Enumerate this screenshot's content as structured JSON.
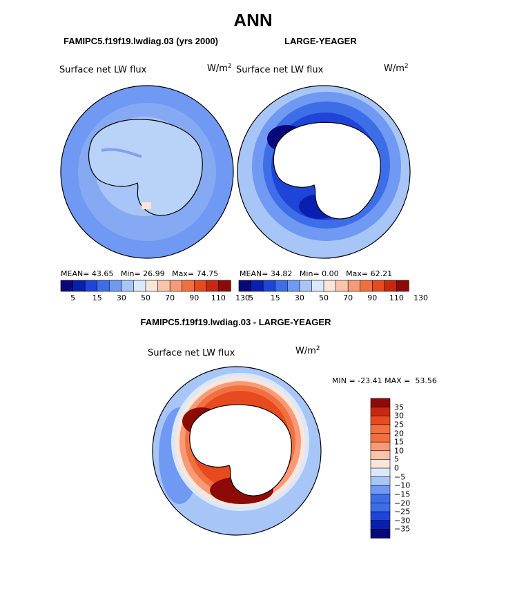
{
  "page": {
    "title": "ANN",
    "diff_title": "FAMIPC5.f19f19.lwdiag.03 - LARGE-YEAGER"
  },
  "colors": {
    "abs_scale": [
      "#08087a",
      "#0a1fb0",
      "#1f44d8",
      "#3d6ee8",
      "#6f99f2",
      "#a8c5f7",
      "#dbe8fb",
      "#fde5d9",
      "#fbc3aa",
      "#f79a78",
      "#f2703f",
      "#e84a1f",
      "#c72810",
      "#8e0a06"
    ],
    "diff_scale": [
      "#08087a",
      "#0a1fb0",
      "#1f44d8",
      "#3d6ee8",
      "#6f99f2",
      "#a8c5f7",
      "#dbe8fb",
      "#fde5d9",
      "#fbc3aa",
      "#f79a78",
      "#f2703f",
      "#e84a1f",
      "#c72810",
      "#8e0a06"
    ],
    "land": "#ffffff",
    "outline": "#000000"
  },
  "chart_data": [
    {
      "type": "heatmap",
      "projection": "south-polar-stereographic",
      "subtitle": "FAMIPC5.f19f19.lwdiag.03 (yrs 2000)",
      "title": "Surface net LW flux",
      "units": "W/m",
      "units_exp": "2",
      "mean_label": "MEAN=",
      "mean": "43.65",
      "min_label": "Min=",
      "min": "26.99",
      "max_label": "Max=",
      "max": "74.75",
      "colorbar_ticks": [
        "5",
        "15",
        "30",
        "50",
        "70",
        "90",
        "110",
        "130"
      ],
      "colorbar_levels": 14
    },
    {
      "type": "heatmap",
      "projection": "south-polar-stereographic",
      "subtitle": "LARGE-YEAGER",
      "title": "Surface net LW flux",
      "units": "W/m",
      "units_exp": "2",
      "mean_label": "MEAN=",
      "mean": "34.82",
      "min_label": "Min=",
      "min": "0.00",
      "max_label": "Max=",
      "max": "62.21",
      "colorbar_ticks": [
        "5",
        "15",
        "30",
        "50",
        "70",
        "90",
        "110",
        "130"
      ],
      "colorbar_levels": 14
    },
    {
      "type": "heatmap",
      "projection": "south-polar-stereographic",
      "title": "Surface net LW flux",
      "units": "W/m",
      "units_exp": "2",
      "minmax_text": "MIN = -23.41 MAX =  53.56",
      "colorbar_ticks": [
        "35",
        "30",
        "25",
        "20",
        "15",
        "10",
        "5",
        "0",
        "−5",
        "−10",
        "−15",
        "−20",
        "−25",
        "−30",
        "−35"
      ],
      "colorbar_levels": 16
    }
  ]
}
